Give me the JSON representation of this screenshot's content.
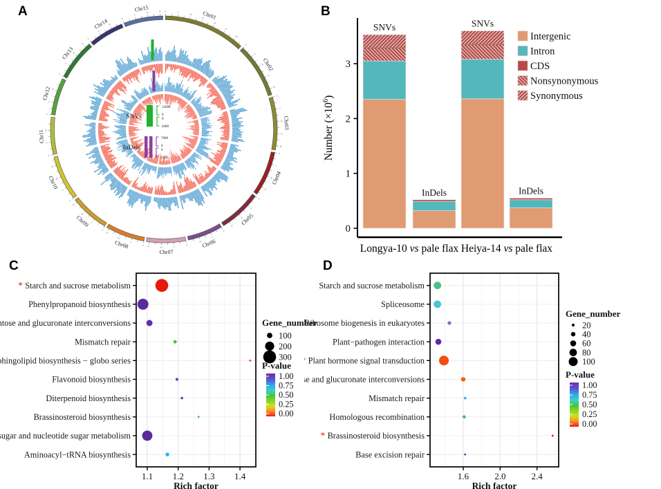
{
  "figure": {
    "panels": [
      {
        "id": "A",
        "label": "A"
      },
      {
        "id": "B",
        "label": "B"
      },
      {
        "id": "C",
        "label": "C"
      },
      {
        "id": "D",
        "label": "D"
      }
    ]
  },
  "chart_data": [
    {
      "panel": "A",
      "type": "circos",
      "description": "Circular genome plot of SNV and InDel density across 15 flax chromosomes; outward blue histograms and inward red histograms for two tracks",
      "chromosomes": [
        {
          "name": "Chr01",
          "color": "#7d7a2f",
          "size": 42
        },
        {
          "name": "Chr02",
          "color": "#6f7d33",
          "size": 28
        },
        {
          "name": "Chr03",
          "color": "#8c8d36",
          "size": 27
        },
        {
          "name": "Chr04",
          "color": "#9b1f24",
          "size": 23
        },
        {
          "name": "Chr05",
          "color": "#7e2d40",
          "size": 22
        },
        {
          "name": "Chr06",
          "color": "#7c4e8e",
          "size": 18
        },
        {
          "name": "Chr07",
          "color": "#d5a0b5",
          "size": 20
        },
        {
          "name": "Chr08",
          "color": "#d97e29",
          "size": 20
        },
        {
          "name": "Chr09",
          "color": "#c8a02b",
          "size": 20
        },
        {
          "name": "Chr10",
          "color": "#cfc52f",
          "size": 23
        },
        {
          "name": "Chr11",
          "color": "#aebe38",
          "size": 19
        },
        {
          "name": "Chr12",
          "color": "#57a23b",
          "size": 19
        },
        {
          "name": "Chr13",
          "color": "#2e7a35",
          "size": 21
        },
        {
          "name": "Chr14",
          "color": "#35356f",
          "size": 18
        },
        {
          "name": "Chr15",
          "color": "#5a6c9e",
          "size": 20
        }
      ],
      "tracks": [
        {
          "name": "SNVs",
          "outward_color": "#4498ce",
          "inward_color": "#f2503c",
          "scale_bar_color": "#1db32e",
          "scale_outward": [
            0,
            12000
          ],
          "scale_inward": [
            0,
            6400
          ]
        },
        {
          "name": "InDels",
          "outward_color": "#4498ce",
          "inward_color": "#f2503c",
          "scale_bar_color": "#8b3f9e",
          "scale_outward": [
            0,
            7000
          ],
          "scale_inward": [
            0,
            3500
          ]
        }
      ],
      "center_legend": [
        {
          "label": "SNVs",
          "color": "#1db32e",
          "tick_top": "12000",
          "tick_zero_a": "0",
          "tick_zero_b": "0",
          "tick_bottom": "6400"
        },
        {
          "label": "InDels",
          "color": "#8b3f9e",
          "tick_top": "7000",
          "tick_zero_a": "0",
          "tick_zero_b": "0",
          "tick_bottom": "3500"
        }
      ]
    },
    {
      "panel": "B",
      "type": "bar",
      "ylabel": "Number (×10⁶)",
      "ylabel_parts": [
        "Number (×10",
        "6",
        ")"
      ],
      "yticks": [
        "0",
        "1",
        "2",
        "3"
      ],
      "ylim": [
        0,
        3.8
      ],
      "groups": [
        {
          "label": "Longya-10 vs pale flax",
          "label_parts": [
            "Longya-10 ",
            "vs",
            " pale flax"
          ],
          "bars": [
            {
              "annotation": "SNVs",
              "segments": [
                {
                  "name": "Intergenic",
                  "value": 2.35
                },
                {
                  "name": "Intron",
                  "value": 0.7
                },
                {
                  "name": "Nonsynonymous",
                  "value": 0.24
                },
                {
                  "name": "Synonymous",
                  "value": 0.24
                }
              ]
            },
            {
              "annotation": "InDels",
              "segments": [
                {
                  "name": "Intergenic",
                  "value": 0.32
                },
                {
                  "name": "Intron",
                  "value": 0.17
                },
                {
                  "name": "CDS",
                  "value": 0.03
                }
              ]
            }
          ]
        },
        {
          "label": "Heiya-14 vs pale flax",
          "label_parts": [
            "Heiya-14 ",
            "vs",
            " pale flax"
          ],
          "bars": [
            {
              "annotation": "SNVs",
              "segments": [
                {
                  "name": "Intergenic",
                  "value": 2.36
                },
                {
                  "name": "Intron",
                  "value": 0.72
                },
                {
                  "name": "Nonsynonymous",
                  "value": 0.27
                },
                {
                  "name": "Synonymous",
                  "value": 0.25
                }
              ]
            },
            {
              "annotation": "InDels",
              "segments": [
                {
                  "name": "Intergenic",
                  "value": 0.37
                },
                {
                  "name": "Intron",
                  "value": 0.15
                },
                {
                  "name": "CDS",
                  "value": 0.03
                }
              ]
            }
          ]
        }
      ],
      "legend": [
        {
          "label": "Intergenic",
          "color": "#e09b72",
          "hatch": "none"
        },
        {
          "label": "Intron",
          "color": "#53b7bb",
          "hatch": "none"
        },
        {
          "label": "CDS",
          "color": "#bc4845",
          "hatch": "none"
        },
        {
          "label": "Nonsynonymous",
          "color": "#bc4845",
          "hatch": "back"
        },
        {
          "label": "Synonymous",
          "color": "#bc4845",
          "hatch": "fwd"
        }
      ],
      "colors": {
        "Intergenic": "#e09b72",
        "Intron": "#53b7bb",
        "CDS": "#bc4845",
        "Nonsynonymous": "hatch-back",
        "Synonymous": "hatch-fwd"
      }
    },
    {
      "panel": "C",
      "type": "scatter",
      "xlabel": "Rich factor",
      "xticks": [
        "1.1",
        "1.2",
        "1.3",
        "1.4"
      ],
      "xlim": [
        1.064,
        1.452
      ],
      "points": [
        {
          "label": "Starch and sucrose metabolism",
          "starred": true,
          "x": 1.147,
          "gene_number": 300,
          "color": "#e8190c"
        },
        {
          "label": "Phenylpropanoid biosynthesis",
          "starred": false,
          "x": 1.086,
          "gene_number": 250,
          "color": "#5b2a9b"
        },
        {
          "label": "Pentose and glucuronate interconversions",
          "starred": false,
          "x": 1.107,
          "gene_number": 120,
          "color": "#6130a8"
        },
        {
          "label": "Mismatch repair",
          "starred": false,
          "x": 1.19,
          "gene_number": 45,
          "color": "#3ecc1f"
        },
        {
          "label": "Glycosphingolipid biosynthesis − globo series",
          "starred": true,
          "x": 1.433,
          "gene_number": 10,
          "color": "#f0492a"
        },
        {
          "label": "Flavonoid biosynthesis",
          "starred": false,
          "x": 1.196,
          "gene_number": 30,
          "color": "#6638b8"
        },
        {
          "label": "Diterpenoid biosynthesis",
          "starred": false,
          "x": 1.212,
          "gene_number": 22,
          "color": "#6a3bc0"
        },
        {
          "label": "Brassinosteroid biosynthesis",
          "starred": false,
          "x": 1.266,
          "gene_number": 10,
          "color": "#47c83c"
        },
        {
          "label": "Amino sugar and nucleotide sugar metabolism",
          "starred": false,
          "x": 1.1,
          "gene_number": 230,
          "color": "#5b2a9b"
        },
        {
          "label": "Aminoacyl−tRNA biosynthesis",
          "starred": false,
          "x": 1.165,
          "gene_number": 55,
          "color": "#19b5f5"
        }
      ],
      "size_legend": {
        "title": "Gene_number",
        "entries": [
          "100",
          "200",
          "300"
        ]
      },
      "color_legend": {
        "title": "P-value",
        "ticks": [
          "1.00",
          "0.75",
          "0.50",
          "0.25",
          "0.00"
        ]
      }
    },
    {
      "panel": "D",
      "type": "scatter",
      "xlabel": "Rich factor",
      "xticks": [
        "1.6",
        "2.0",
        "2.4"
      ],
      "xlim": [
        1.24,
        2.65
      ],
      "points": [
        {
          "label": "Starch and sucrose metabolism",
          "starred": false,
          "x": 1.32,
          "gene_number": 80,
          "color": "#4ec08b"
        },
        {
          "label": "Spliceosome",
          "starred": false,
          "x": 1.32,
          "gene_number": 80,
          "color": "#49c6d2"
        },
        {
          "label": "Ribosome biogenesis in eukaryotes",
          "starred": false,
          "x": 1.45,
          "gene_number": 30,
          "color": "#7175d2"
        },
        {
          "label": "Plant−pathogen interaction",
          "starred": false,
          "x": 1.33,
          "gene_number": 60,
          "color": "#6429a8"
        },
        {
          "label": "Plant hormone signal transduction",
          "starred": true,
          "x": 1.39,
          "gene_number": 110,
          "color": "#f44d0d"
        },
        {
          "label": "Pentose and glucuronate interconversions",
          "starred": true,
          "x": 1.6,
          "gene_number": 40,
          "color": "#f2600f"
        },
        {
          "label": "Mismatch repair",
          "starred": false,
          "x": 1.62,
          "gene_number": 15,
          "color": "#3fa8f2"
        },
        {
          "label": "Homologous recombination",
          "starred": false,
          "x": 1.61,
          "gene_number": 25,
          "color": "#49be55"
        },
        {
          "label": "Brassinosteroid biosynthesis",
          "starred": true,
          "x": 2.57,
          "gene_number": 8,
          "color": "#f01c0c"
        },
        {
          "label": "Base excision repair",
          "starred": false,
          "x": 1.62,
          "gene_number": 8,
          "color": "#6f3abf"
        }
      ],
      "size_legend": {
        "title": "Gene_number",
        "entries": [
          "20",
          "40",
          "60",
          "80",
          "100"
        ]
      },
      "color_legend": {
        "title": "P-value",
        "ticks": [
          "1.00",
          "0.75",
          "0.50",
          "0.25",
          "0.00"
        ]
      }
    }
  ]
}
